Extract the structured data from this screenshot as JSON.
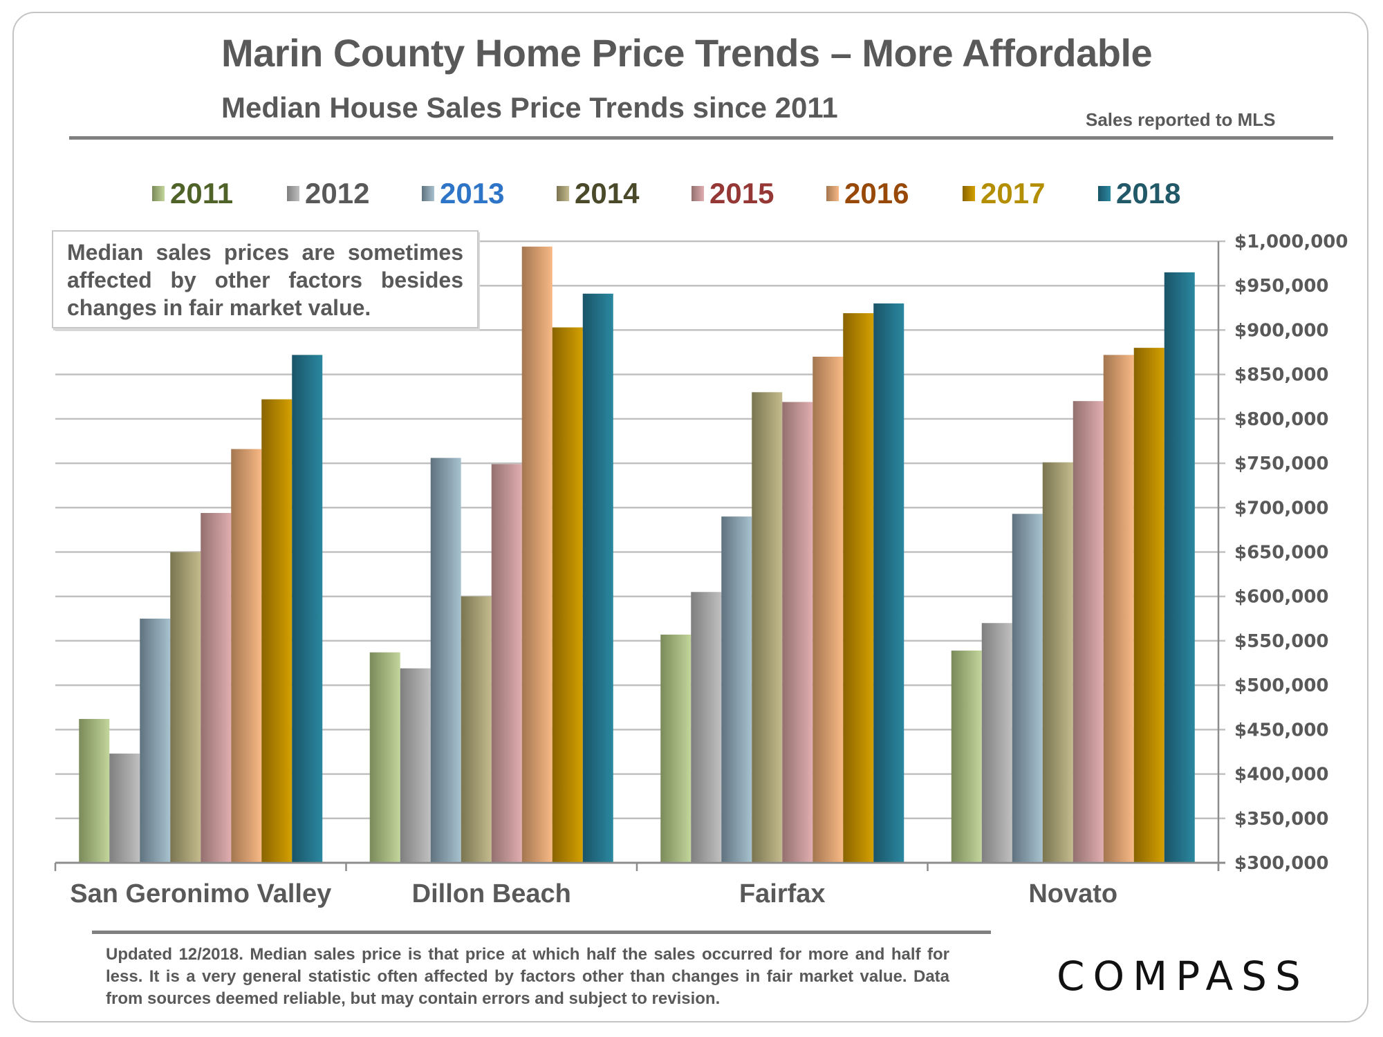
{
  "header": {
    "title": "Marin County Home Price Trends – More Affordable",
    "subtitle": "Median House Sales Price Trends since 2011",
    "source_note": "Sales reported to MLS"
  },
  "note_box": {
    "text": "Median sales prices are sometimes affected by other factors besides changes in fair market value."
  },
  "footer": {
    "text": "Updated 12/2018. Median sales price is that price at which half the sales occurred for more and half for less. It is a very general statistic often affected by factors other than changes in fair market value. Data from sources deemed reliable, but may contain errors and subject to revision.",
    "logo_text": "COMPASS"
  },
  "legend": [
    {
      "label": "2011",
      "text_color": "#4f6228",
      "swatch": [
        "#7a8a5a",
        "#c3d69b"
      ]
    },
    {
      "label": "2012",
      "text_color": "#595959",
      "swatch": [
        "#7f7f7f",
        "#c0c0c0"
      ]
    },
    {
      "label": "2013",
      "text_color": "#2e75c8",
      "swatch": [
        "#5f737f",
        "#a8c2cf"
      ]
    },
    {
      "label": "2014",
      "text_color": "#4a4a2a",
      "swatch": [
        "#7a7550",
        "#c4bb8e"
      ]
    },
    {
      "label": "2015",
      "text_color": "#953735",
      "swatch": [
        "#94706f",
        "#e0aeb0"
      ]
    },
    {
      "label": "2016",
      "text_color": "#984807",
      "swatch": [
        "#a47650",
        "#f8b985"
      ]
    },
    {
      "label": "2017",
      "text_color": "#b38e00",
      "swatch": [
        "#8a6400",
        "#d4a000"
      ]
    },
    {
      "label": "2018",
      "text_color": "#215968",
      "swatch": [
        "#1a5468",
        "#2a88a0"
      ]
    }
  ],
  "chart_data": {
    "type": "bar",
    "title": "Median House Sales Price Trends since 2011",
    "xlabel": "",
    "ylabel": "",
    "categories": [
      "San Geronimo Valley",
      "Dillon Beach",
      "Fairfax",
      "Novato"
    ],
    "series": [
      {
        "name": "2011",
        "values": [
          462000,
          537000,
          557000,
          539000
        ]
      },
      {
        "name": "2012",
        "values": [
          423000,
          519000,
          605000,
          570000
        ]
      },
      {
        "name": "2013",
        "values": [
          575000,
          756000,
          690000,
          693000
        ]
      },
      {
        "name": "2014",
        "values": [
          650000,
          600000,
          830000,
          751000
        ]
      },
      {
        "name": "2015",
        "values": [
          694000,
          749000,
          819000,
          820000
        ]
      },
      {
        "name": "2016",
        "values": [
          766000,
          994000,
          870000,
          872000
        ]
      },
      {
        "name": "2017",
        "values": [
          822000,
          903000,
          919000,
          880000
        ]
      },
      {
        "name": "2018",
        "values": [
          872000,
          941000,
          930000,
          965000
        ]
      }
    ],
    "ylim": [
      300000,
      1000000
    ],
    "y_ticks": [
      300000,
      350000,
      400000,
      450000,
      500000,
      550000,
      600000,
      650000,
      700000,
      750000,
      800000,
      850000,
      900000,
      950000,
      1000000
    ],
    "y_tick_labels": [
      "$300,000",
      "$350,000",
      "$400,000",
      "$450,000",
      "$500,000",
      "$550,000",
      "$600,000",
      "$650,000",
      "$700,000",
      "$750,000",
      "$800,000",
      "$850,000",
      "$900,000",
      "$950,000",
      "$1,000,000"
    ],
    "y_axis_side": "right",
    "grid": true,
    "legend_position": "top"
  }
}
